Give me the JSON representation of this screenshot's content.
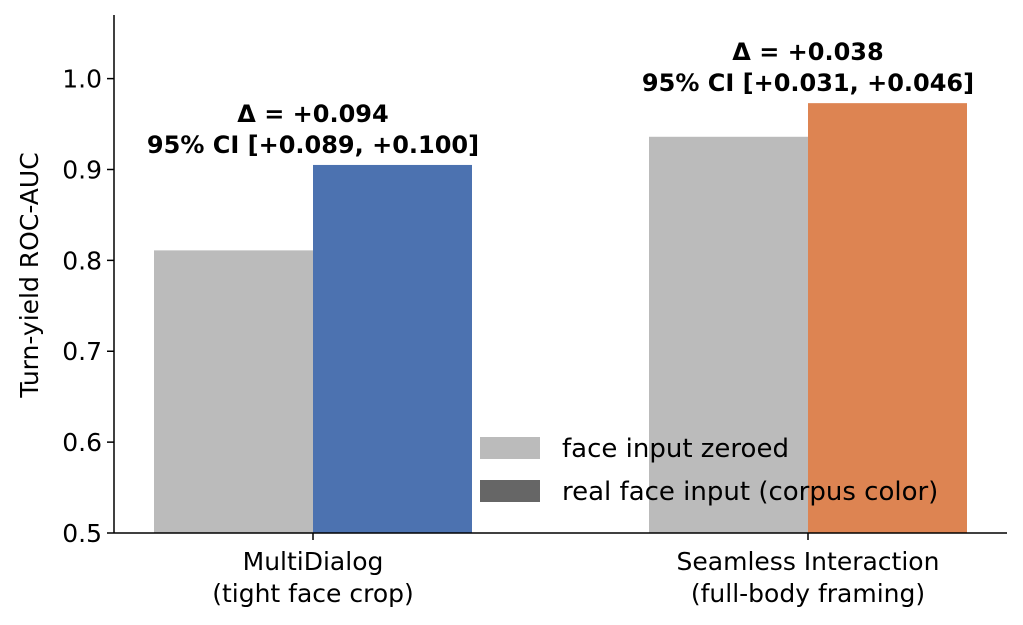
{
  "chart_data": {
    "type": "bar",
    "title": "",
    "xlabel": "",
    "ylabel": "Turn-yield ROC-AUC",
    "ylim": [
      0.5,
      1.07
    ],
    "yticks": [
      "0.5",
      "0.6",
      "0.7",
      "0.8",
      "0.9",
      "1.0"
    ],
    "grid": false,
    "legend_position": "bottom-right",
    "categories": [
      {
        "line1": "MultiDialog",
        "line2": "(tight face crop)"
      },
      {
        "line1": "Seamless Interaction",
        "line2": "(full-body framing)"
      }
    ],
    "series": [
      {
        "name": "face input zeroed",
        "values": [
          0.811,
          0.936
        ],
        "colors": [
          "#bbbbbb",
          "#bbbbbb"
        ],
        "legend_color": "#bbbbbb"
      },
      {
        "name": "real face input (corpus color)",
        "values": [
          0.905,
          0.973
        ],
        "colors": [
          "#4c72b0",
          "#dd8452"
        ],
        "legend_color": "#666666"
      }
    ],
    "annotations": [
      {
        "line1": "Δ = +0.094",
        "line2": "95% CI [+0.089, +0.100]"
      },
      {
        "line1": "Δ = +0.038",
        "line2": "95% CI [+0.031, +0.046]"
      }
    ]
  }
}
